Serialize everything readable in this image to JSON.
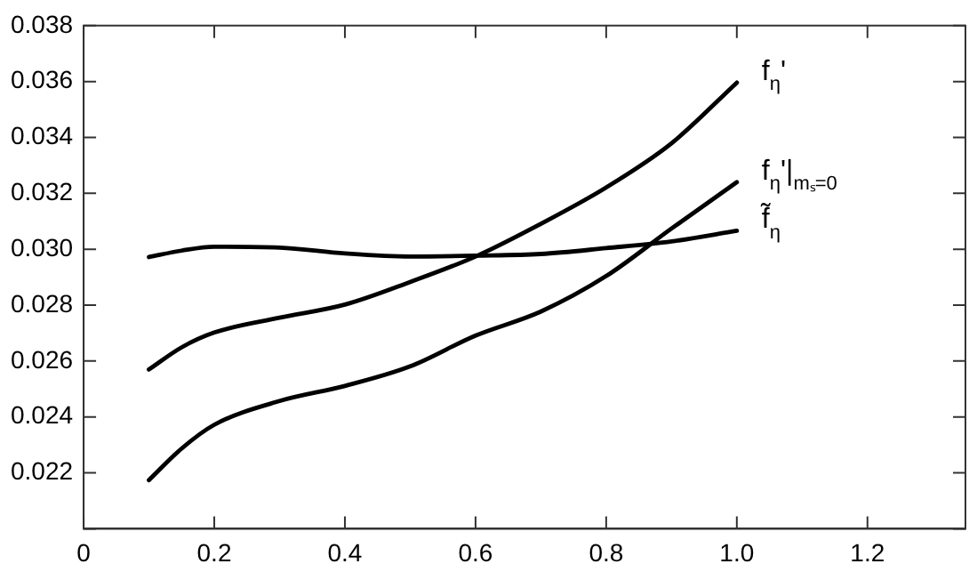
{
  "chart_data": {
    "type": "line",
    "x": [
      0.1,
      0.15,
      0.2,
      0.3,
      0.4,
      0.5,
      0.6,
      0.7,
      0.8,
      0.9,
      1.0
    ],
    "series": [
      {
        "name": "f$_{η}$'",
        "color": "#000000",
        "values": [
          0.0257,
          0.02649,
          0.02702,
          0.02755,
          0.02802,
          0.02883,
          0.02974,
          0.03091,
          0.03221,
          0.03379,
          0.03596
        ]
      },
      {
        "name": "f$_{η}$'|$_{mₛ=0}$",
        "color": "#000000",
        "values": [
          0.02174,
          0.02287,
          0.02372,
          0.02457,
          0.02511,
          0.02581,
          0.02691,
          0.02777,
          0.02904,
          0.03074,
          0.0324
        ]
      },
      {
        "name": "f̃$_{η}$",
        "color": "#000000",
        "values": [
          0.02972,
          0.02995,
          0.03009,
          0.03006,
          0.02985,
          0.02974,
          0.02977,
          0.02983,
          0.03004,
          0.03028,
          0.03066
        ]
      }
    ],
    "xlim": [
      0,
      1.35
    ],
    "xticks": [
      0,
      {
        "value": 0.2,
        "label": "0.2"
      },
      {
        "value": 0.4,
        "label": "0.4"
      },
      {
        "value": 0.6,
        "label": "0.6"
      },
      {
        "value": 0.8,
        "label": "0.8"
      },
      {
        "value": 1.0,
        "label": "1.0"
      },
      {
        "value": 1.2,
        "label": "1.2"
      }
    ],
    "ylim": [
      0.02,
      0.038
    ],
    "yticks": [
      {
        "value": 0.02,
        "label": null
      },
      0.022,
      0.024,
      0.026,
      0.028,
      {
        "value": 0.03,
        "label": "0.030"
      },
      0.032,
      0.034,
      0.036,
      0.038
    ],
    "legend": false,
    "marker": "none",
    "line_style": "solid"
  }
}
